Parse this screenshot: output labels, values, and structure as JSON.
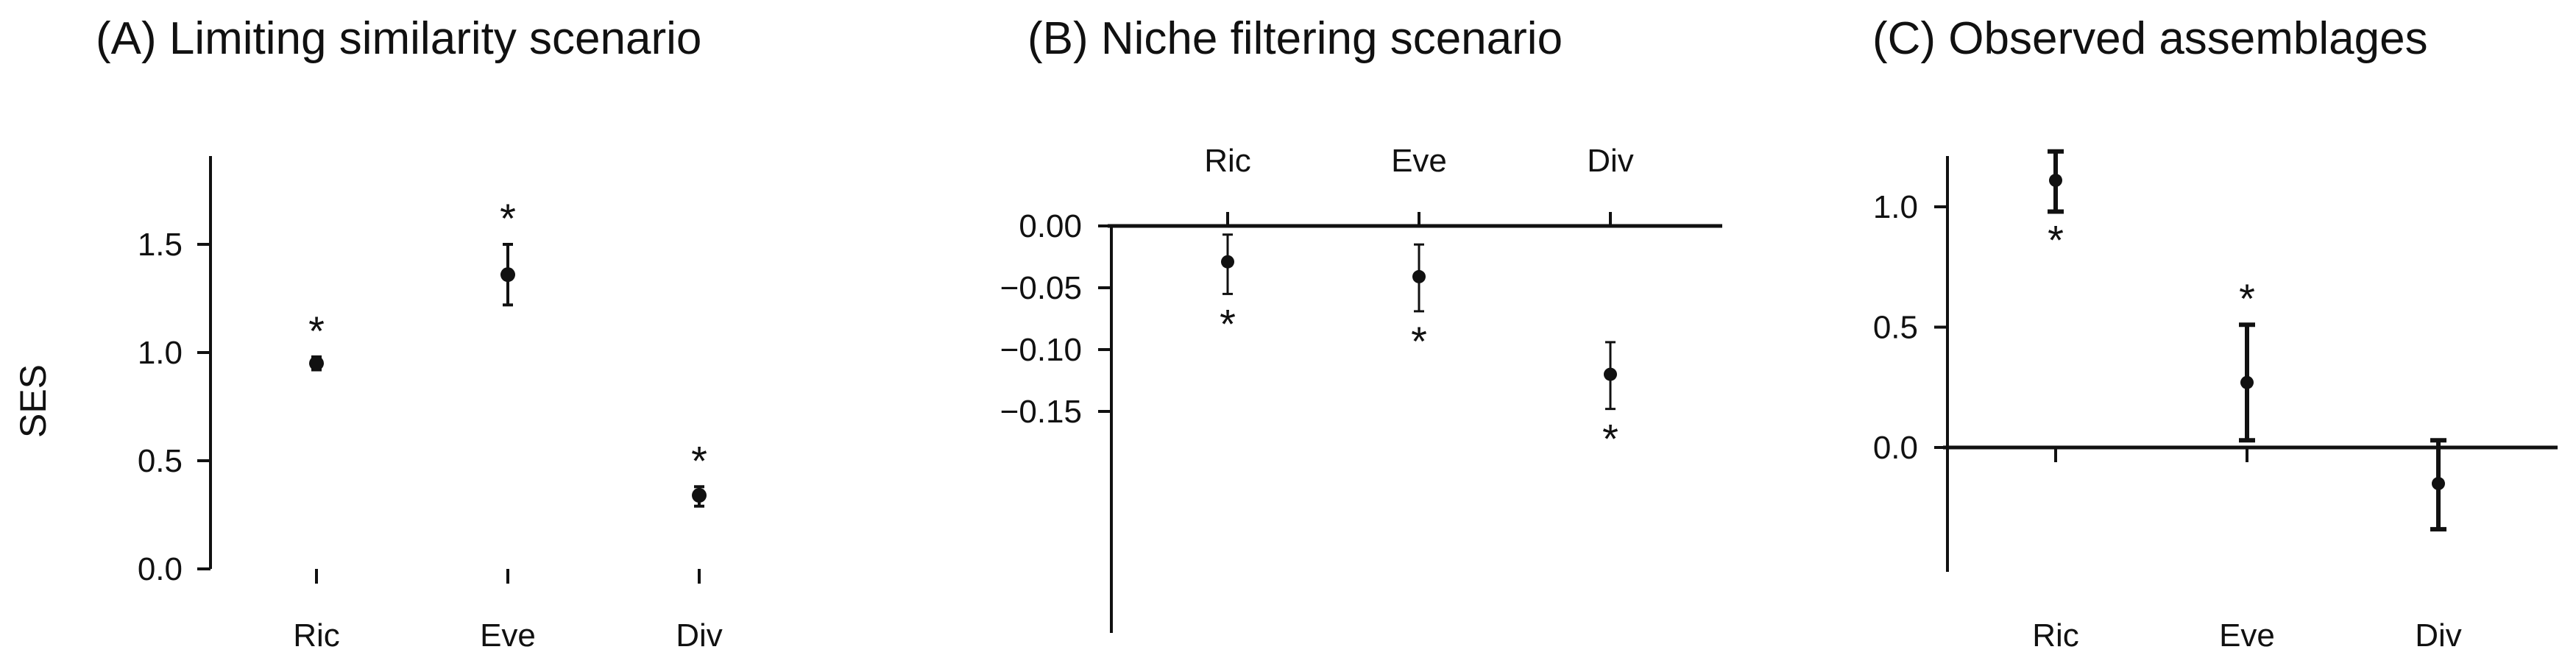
{
  "y_axis_label": "SES",
  "chart_data": [
    {
      "type": "scatter",
      "subtype": "point-with-error-bars",
      "title": "(A) Limiting similarity scenario",
      "ylabel": "SES",
      "categories": [
        "Ric",
        "Eve",
        "Div"
      ],
      "series": [
        {
          "values": [
            0.95,
            1.36,
            0.34
          ],
          "lower": [
            0.92,
            1.22,
            0.29
          ],
          "upper": [
            0.98,
            1.5,
            0.38
          ],
          "significance": [
            "*",
            "*",
            "*"
          ]
        }
      ],
      "yticks": [
        "0.0",
        "0.5",
        "1.0",
        "1.5"
      ],
      "ylim": [
        0,
        1.72
      ],
      "grid": false,
      "legend": "none"
    },
    {
      "type": "scatter",
      "subtype": "point-with-error-bars",
      "title": "(B) Niche filtering scenario",
      "ylabel": "",
      "categories": [
        "Ric",
        "Eve",
        "Div"
      ],
      "series": [
        {
          "values": [
            -0.029,
            -0.041,
            -0.12
          ],
          "lower": [
            -0.055,
            -0.069,
            -0.148
          ],
          "upper": [
            -0.007,
            -0.015,
            -0.094
          ],
          "significance": [
            "*",
            "*",
            "*"
          ]
        }
      ],
      "yticks": [
        "0.00",
        "−0.05",
        "−0.10",
        "−0.15"
      ],
      "ylim": [
        -0.17,
        0.0
      ],
      "grid": false,
      "legend": "none"
    },
    {
      "type": "scatter",
      "subtype": "point-with-error-bars",
      "title": "(C) Observed assemblages",
      "ylabel": "",
      "categories": [
        "Ric",
        "Eve",
        "Div"
      ],
      "series": [
        {
          "values": [
            1.11,
            0.27,
            -0.15
          ],
          "lower": [
            0.98,
            0.03,
            -0.34
          ],
          "upper": [
            1.23,
            0.51,
            0.03
          ],
          "significance": [
            "*",
            "*",
            ""
          ]
        }
      ],
      "yticks": [
        "0.0",
        "0.5",
        "1.0"
      ],
      "ylim": [
        -0.27,
        1.22
      ],
      "grid": false,
      "legend": "none"
    }
  ]
}
